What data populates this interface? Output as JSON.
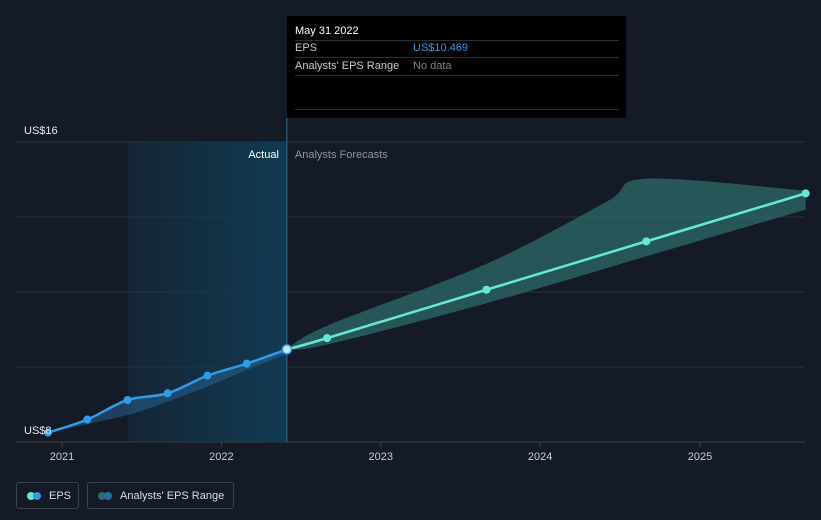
{
  "tooltip": {
    "date": "May 31 2022",
    "rows": [
      {
        "label": "EPS",
        "value": "US$10.469",
        "color": "#2f9ce8"
      },
      {
        "label": "Analysts' EPS Range",
        "value": "No data",
        "color": "#7b818c"
      }
    ]
  },
  "regions": {
    "actual": "Actual",
    "forecast": "Analysts Forecasts"
  },
  "legend": {
    "eps": "EPS",
    "range": "Analysts' EPS Range"
  },
  "colors": {
    "background": "#151b26",
    "eps_actual": "#2f9ce8",
    "eps_forecast": "#66e8d4",
    "range_fill": "#2e6b69",
    "actual_band": "#123a52"
  },
  "chart_data": {
    "type": "line",
    "x_unit": "date",
    "ylim": [
      8,
      16
    ],
    "y_tick_labels": [
      {
        "y": 16,
        "label": "US$16"
      },
      {
        "y": 8,
        "label": "US$8"
      }
    ],
    "x_tick_labels": [
      {
        "x": "2021-01-01",
        "label": "2021"
      },
      {
        "x": "2022-01-01",
        "label": "2022"
      },
      {
        "x": "2023-01-01",
        "label": "2023"
      },
      {
        "x": "2024-01-01",
        "label": "2024"
      },
      {
        "x": "2025-01-01",
        "label": "2025"
      }
    ],
    "grid": true,
    "actual_start": "2021-06-01",
    "actual_end": "2022-05-31",
    "series": [
      {
        "name": "EPS",
        "points": [
          {
            "x": "2020-11-30",
            "y": 8.25
          },
          {
            "x": "2021-02-28",
            "y": 8.6
          },
          {
            "x": "2021-05-31",
            "y": 9.12
          },
          {
            "x": "2021-08-31",
            "y": 9.3
          },
          {
            "x": "2021-11-30",
            "y": 9.77
          },
          {
            "x": "2022-02-28",
            "y": 10.09
          },
          {
            "x": "2022-05-31",
            "y": 10.469
          }
        ]
      },
      {
        "name": "EPS Forecast",
        "points": [
          {
            "x": "2022-05-31",
            "y": 10.469
          },
          {
            "x": "2022-08-31",
            "y": 10.77
          },
          {
            "x": "2023-08-31",
            "y": 12.06
          },
          {
            "x": "2024-08-31",
            "y": 13.35
          },
          {
            "x": "2025-08-31",
            "y": 14.63
          }
        ]
      }
    ],
    "range": {
      "name": "Analysts' EPS Range",
      "upper": [
        {
          "x": "2022-05-31",
          "y": 10.469
        },
        {
          "x": "2022-08-31",
          "y": 11.1
        },
        {
          "x": "2023-08-31",
          "y": 12.75
        },
        {
          "x": "2024-05-31",
          "y": 14.4
        },
        {
          "x": "2024-08-31",
          "y": 15.02
        },
        {
          "x": "2025-08-31",
          "y": 14.7
        }
      ],
      "lower": [
        {
          "x": "2022-05-31",
          "y": 10.469
        },
        {
          "x": "2022-08-31",
          "y": 10.6
        },
        {
          "x": "2023-08-31",
          "y": 11.7
        },
        {
          "x": "2024-08-31",
          "y": 12.95
        },
        {
          "x": "2025-08-31",
          "y": 14.2
        }
      ]
    },
    "past_range": {
      "upper": [
        {
          "x": "2020-11-30",
          "y": 8.25
        },
        {
          "x": "2021-05-31",
          "y": 8.72
        },
        {
          "x": "2021-08-31",
          "y": 9.08
        },
        {
          "x": "2021-11-30",
          "y": 9.48
        },
        {
          "x": "2022-02-28",
          "y": 9.92
        },
        {
          "x": "2022-05-31",
          "y": 10.35
        }
      ]
    }
  }
}
